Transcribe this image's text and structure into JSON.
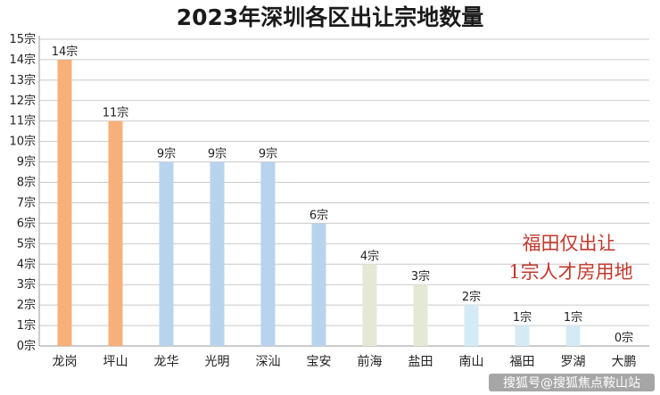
{
  "chart_data": {
    "type": "bar",
    "title": "2023年深圳各区出让宗地数量",
    "categories": [
      "龙岗",
      "坪山",
      "龙华",
      "光明",
      "深汕",
      "宝安",
      "前海",
      "盐田",
      "南山",
      "福田",
      "罗湖",
      "大鹏"
    ],
    "values": [
      14,
      11,
      9,
      9,
      9,
      6,
      4,
      3,
      2,
      1,
      1,
      0
    ],
    "value_labels": [
      "14宗",
      "11宗",
      "9宗",
      "9宗",
      "9宗",
      "6宗",
      "4宗",
      "3宗",
      "2宗",
      "1宗",
      "1宗",
      "0宗"
    ],
    "bar_colors": [
      "#f7b07a",
      "#f7b07a",
      "#b8d3ee",
      "#b8d3ee",
      "#b8d3ee",
      "#b8d3ee",
      "#e3e9d4",
      "#e3e9d4",
      "#d4eaf5",
      "#d4eaf5",
      "#d4eaf5",
      "#d4eaf5"
    ],
    "ylim": [
      0,
      15
    ],
    "y_ticks": [
      "0宗",
      "1宗",
      "2宗",
      "3宗",
      "4宗",
      "5宗",
      "6宗",
      "7宗",
      "8宗",
      "9宗",
      "10宗",
      "11宗",
      "12宗",
      "13宗",
      "14宗",
      "15宗"
    ],
    "grid": true,
    "xlabel": "",
    "ylabel": ""
  },
  "annotation": {
    "lines": [
      "福田仅出让",
      "1宗人才房用地"
    ],
    "color": "#c0392b"
  },
  "watermark": "搜狐号@搜狐焦点鞍山站"
}
